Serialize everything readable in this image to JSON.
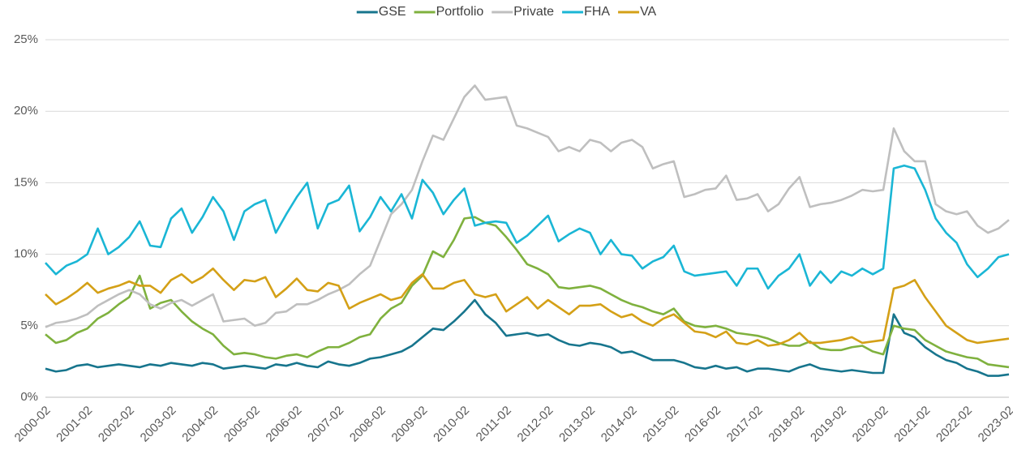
{
  "chart_data": {
    "type": "line",
    "categories": [
      "2000-02",
      null,
      null,
      null,
      "2001-02",
      null,
      null,
      null,
      "2002-02",
      null,
      null,
      null,
      "2003-02",
      null,
      null,
      null,
      "2004-02",
      null,
      null,
      null,
      "2005-02",
      null,
      null,
      null,
      "2006-02",
      null,
      null,
      null,
      "2007-02",
      null,
      null,
      null,
      "2008-02",
      null,
      null,
      null,
      "2009-02",
      null,
      null,
      null,
      "2010-02",
      null,
      null,
      null,
      "2011-02",
      null,
      null,
      null,
      "2012-02",
      null,
      null,
      null,
      "2013-02",
      null,
      null,
      null,
      "2014-02",
      null,
      null,
      null,
      "2015-02",
      null,
      null,
      null,
      "2016-02",
      null,
      null,
      null,
      "2017-02",
      null,
      null,
      null,
      "2018-02",
      null,
      null,
      null,
      "2019-02",
      null,
      null,
      null,
      "2020-02",
      null,
      null,
      null,
      "2021-02",
      null,
      null,
      null,
      "2022-02",
      null,
      null,
      null,
      "2023-02"
    ],
    "series": [
      {
        "name": "GSE",
        "color": "#17758d",
        "values": [
          2.0,
          1.8,
          1.9,
          2.2,
          2.3,
          2.1,
          2.2,
          2.3,
          2.2,
          2.1,
          2.3,
          2.2,
          2.4,
          2.3,
          2.2,
          2.4,
          2.3,
          2.0,
          2.1,
          2.2,
          2.1,
          2.0,
          2.3,
          2.2,
          2.4,
          2.2,
          2.1,
          2.5,
          2.3,
          2.2,
          2.4,
          2.7,
          2.8,
          3.0,
          3.2,
          3.6,
          4.2,
          4.8,
          4.7,
          5.3,
          6.0,
          6.8,
          5.8,
          5.2,
          4.3,
          4.4,
          4.5,
          4.3,
          4.4,
          4.0,
          3.7,
          3.6,
          3.8,
          3.7,
          3.5,
          3.1,
          3.2,
          2.9,
          2.6,
          2.6,
          2.6,
          2.4,
          2.1,
          2.0,
          2.2,
          2.0,
          2.1,
          1.8,
          2.0,
          2.0,
          1.9,
          1.8,
          2.1,
          2.3,
          2.0,
          1.9,
          1.8,
          1.9,
          1.8,
          1.7,
          1.7,
          5.8,
          4.5,
          4.2,
          3.5,
          3.0,
          2.6,
          2.4,
          2.0,
          1.8,
          1.5,
          1.5,
          1.6
        ]
      },
      {
        "name": "Portfolio",
        "color": "#7fb13e",
        "values": [
          4.4,
          3.8,
          4.0,
          4.5,
          4.8,
          5.5,
          5.9,
          6.5,
          7.0,
          8.5,
          6.2,
          6.6,
          6.8,
          6.0,
          5.3,
          4.8,
          4.4,
          3.6,
          3.0,
          3.1,
          3.0,
          2.8,
          2.7,
          2.9,
          3.0,
          2.8,
          3.2,
          3.5,
          3.5,
          3.8,
          4.2,
          4.4,
          5.5,
          6.2,
          6.6,
          7.8,
          8.5,
          10.2,
          9.8,
          11.0,
          12.5,
          12.6,
          12.2,
          12.0,
          11.2,
          10.3,
          9.3,
          9.0,
          8.6,
          7.7,
          7.6,
          7.7,
          7.8,
          7.6,
          7.2,
          6.8,
          6.5,
          6.3,
          6.0,
          5.8,
          6.2,
          5.3,
          5.0,
          4.9,
          5.0,
          4.8,
          4.5,
          4.4,
          4.3,
          4.1,
          3.8,
          3.6,
          3.6,
          3.9,
          3.4,
          3.3,
          3.3,
          3.5,
          3.6,
          3.2,
          3.0,
          5.0,
          4.8,
          4.7,
          4.0,
          3.6,
          3.2,
          3.0,
          2.8,
          2.7,
          2.3,
          2.2,
          2.1
        ]
      },
      {
        "name": "Private",
        "color": "#bfbfbf",
        "values": [
          4.9,
          5.2,
          5.3,
          5.5,
          5.8,
          6.4,
          6.8,
          7.2,
          7.5,
          7.2,
          6.5,
          6.2,
          6.6,
          6.8,
          6.4,
          6.8,
          7.2,
          5.3,
          5.4,
          5.5,
          5.0,
          5.2,
          5.9,
          6.0,
          6.5,
          6.5,
          6.8,
          7.2,
          7.5,
          7.9,
          8.6,
          9.2,
          11.0,
          12.8,
          13.5,
          14.5,
          16.5,
          18.3,
          18.0,
          19.5,
          21.0,
          21.8,
          20.8,
          20.9,
          21.0,
          19.0,
          18.8,
          18.5,
          18.2,
          17.2,
          17.5,
          17.2,
          18.0,
          17.8,
          17.2,
          17.8,
          18.0,
          17.5,
          16.0,
          16.3,
          16.5,
          14.0,
          14.2,
          14.5,
          14.6,
          15.5,
          13.8,
          13.9,
          14.2,
          13.0,
          13.5,
          14.6,
          15.4,
          13.3,
          13.5,
          13.6,
          13.8,
          14.1,
          14.5,
          14.4,
          14.5,
          18.8,
          17.2,
          16.5,
          16.5,
          13.5,
          13.0,
          12.8,
          13.0,
          12.0,
          11.5,
          11.8,
          12.4
        ]
      },
      {
        "name": "FHA",
        "color": "#1ab6d5",
        "values": [
          9.4,
          8.6,
          9.2,
          9.5,
          10.0,
          11.8,
          10.0,
          10.5,
          11.2,
          12.3,
          10.6,
          10.5,
          12.5,
          13.2,
          11.5,
          12.6,
          14.0,
          13.0,
          11.0,
          13.0,
          13.5,
          13.8,
          11.5,
          12.8,
          14.0,
          15.0,
          11.8,
          13.5,
          13.8,
          14.8,
          11.6,
          12.6,
          14.0,
          13.0,
          14.2,
          12.5,
          15.2,
          14.3,
          12.8,
          13.8,
          14.6,
          12.0,
          12.2,
          12.3,
          12.2,
          10.8,
          11.3,
          12.0,
          12.7,
          10.9,
          11.4,
          11.8,
          11.5,
          10.0,
          11.0,
          10.0,
          9.9,
          9.0,
          9.5,
          9.8,
          10.6,
          8.8,
          8.5,
          8.6,
          8.7,
          8.8,
          7.8,
          9.0,
          9.0,
          7.6,
          8.5,
          9.0,
          10.0,
          7.8,
          8.8,
          8.0,
          8.8,
          8.5,
          9.0,
          8.6,
          9.0,
          16.0,
          16.2,
          16.0,
          14.5,
          12.5,
          11.5,
          10.8,
          9.3,
          8.4,
          9.0,
          9.8,
          10.0
        ]
      },
      {
        "name": "VA",
        "color": "#d4a017",
        "values": [
          7.2,
          6.5,
          6.9,
          7.4,
          8.0,
          7.3,
          7.6,
          7.8,
          8.1,
          7.8,
          7.8,
          7.3,
          8.2,
          8.6,
          8.0,
          8.4,
          9.0,
          8.2,
          7.5,
          8.2,
          8.1,
          8.4,
          7.0,
          7.6,
          8.3,
          7.5,
          7.4,
          8.0,
          7.8,
          6.2,
          6.6,
          6.9,
          7.2,
          6.8,
          7.0,
          8.0,
          8.6,
          7.6,
          7.6,
          8.0,
          8.2,
          7.2,
          7.0,
          7.2,
          6.0,
          6.5,
          7.0,
          6.2,
          6.8,
          6.3,
          5.8,
          6.4,
          6.4,
          6.5,
          6.0,
          5.6,
          5.8,
          5.3,
          5.0,
          5.5,
          5.8,
          5.2,
          4.6,
          4.5,
          4.2,
          4.6,
          3.8,
          3.7,
          4.0,
          3.6,
          3.7,
          4.0,
          4.5,
          3.8,
          3.8,
          3.9,
          4.0,
          4.2,
          3.8,
          3.9,
          4.0,
          7.6,
          7.8,
          8.2,
          7.0,
          6.0,
          5.0,
          4.5,
          4.0,
          3.8,
          3.9,
          4.0,
          4.1
        ]
      }
    ],
    "ylim": [
      0,
      25
    ],
    "yticks": [
      {
        "value": 0,
        "label": "0%"
      },
      {
        "value": 5,
        "label": "5%"
      },
      {
        "value": 10,
        "label": "10%"
      },
      {
        "value": 15,
        "label": "15%"
      },
      {
        "value": 20,
        "label": "20%"
      },
      {
        "value": 25,
        "label": "25%"
      }
    ],
    "grid": true,
    "legend": "top"
  }
}
